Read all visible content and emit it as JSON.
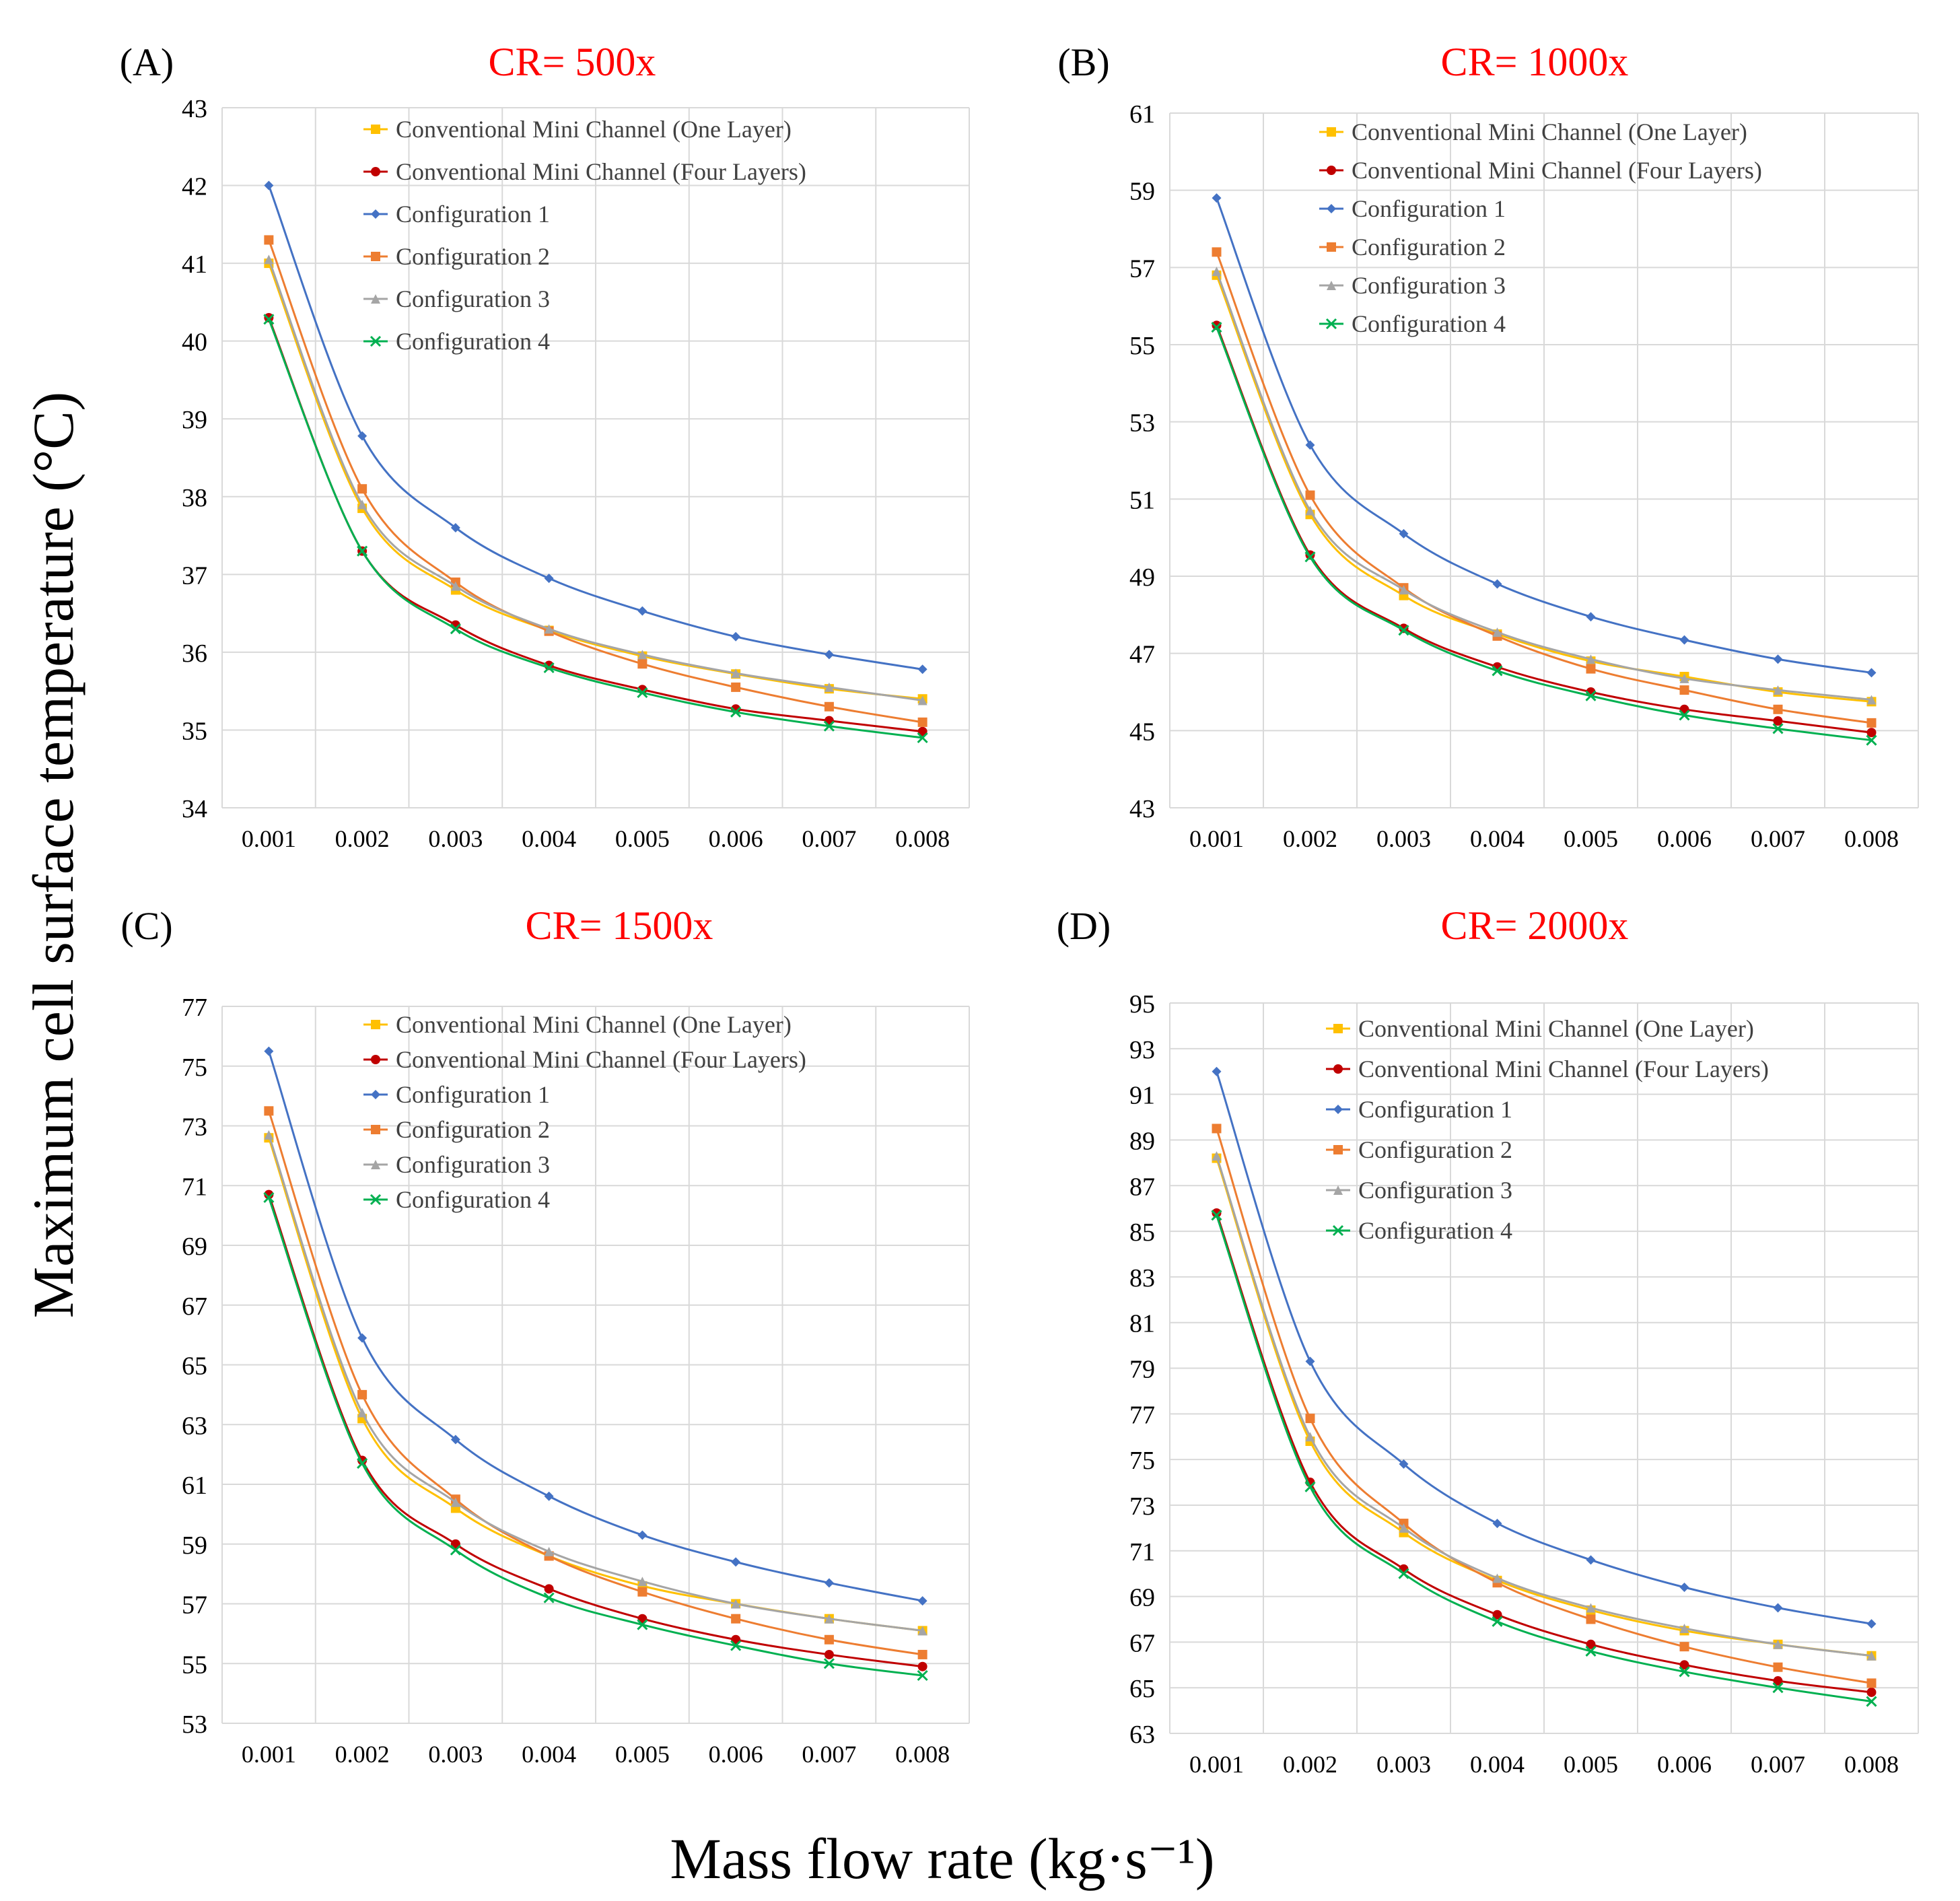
{
  "figure": {
    "ylabel": "Maximum cell surface temperature (°C)",
    "xlabel": "Mass flow rate (kg·s⁻¹)"
  },
  "colors": {
    "panel_title": "#ff0000",
    "grid": "#d9d9d9",
    "series": [
      "#ffc000",
      "#c00000",
      "#4472c4",
      "#ed7d31",
      "#a5a5a5",
      "#00b050"
    ]
  },
  "chart_data": [
    {
      "type": "line",
      "panel_label": "(A)",
      "title": "CR= 500x",
      "categories": [
        "0.001",
        "0.002",
        "0.003",
        "0.004",
        "0.005",
        "0.006",
        "0.007",
        "0.008"
      ],
      "ylim": [
        34,
        43
      ],
      "yticks": [
        34,
        35,
        36,
        37,
        38,
        39,
        40,
        41,
        42,
        43
      ],
      "grid": true,
      "legend": "top-right",
      "series": [
        {
          "name": "Conventional Mini Channel (One Layer)",
          "marker": "square",
          "values": [
            41.0,
            37.85,
            36.8,
            36.28,
            35.95,
            35.72,
            35.53,
            35.4
          ]
        },
        {
          "name": "Conventional Mini Channel (Four Layers)",
          "marker": "circle",
          "values": [
            40.3,
            37.3,
            36.35,
            35.83,
            35.52,
            35.27,
            35.12,
            34.98
          ]
        },
        {
          "name": "Configuration 1",
          "marker": "diamond",
          "values": [
            42.0,
            38.78,
            37.6,
            36.95,
            36.53,
            36.2,
            35.97,
            35.78
          ]
        },
        {
          "name": "Configuration 2",
          "marker": "square",
          "values": [
            41.3,
            38.1,
            36.9,
            36.27,
            35.85,
            35.55,
            35.3,
            35.1
          ]
        },
        {
          "name": "Configuration 3",
          "marker": "triangle",
          "values": [
            41.05,
            37.9,
            36.85,
            36.3,
            35.97,
            35.73,
            35.55,
            35.38
          ]
        },
        {
          "name": "Configuration 4",
          "marker": "x",
          "values": [
            40.28,
            37.3,
            36.3,
            35.8,
            35.48,
            35.23,
            35.05,
            34.9
          ]
        }
      ]
    },
    {
      "type": "line",
      "panel_label": "(B)",
      "title": "CR= 1000x",
      "categories": [
        "0.001",
        "0.002",
        "0.003",
        "0.004",
        "0.005",
        "0.006",
        "0.007",
        "0.008"
      ],
      "ylim": [
        43,
        61
      ],
      "yticks": [
        43,
        45,
        47,
        49,
        51,
        53,
        55,
        57,
        59,
        61
      ],
      "grid": true,
      "legend": "top-right",
      "series": [
        {
          "name": "Conventional Mini Channel (One Layer)",
          "marker": "square",
          "values": [
            56.8,
            50.6,
            48.5,
            47.5,
            46.8,
            46.4,
            46.0,
            45.75
          ]
        },
        {
          "name": "Conventional Mini Channel (Four Layers)",
          "marker": "circle",
          "values": [
            55.5,
            49.55,
            47.65,
            46.65,
            46.0,
            45.55,
            45.25,
            44.95
          ]
        },
        {
          "name": "Configuration 1",
          "marker": "diamond",
          "values": [
            58.8,
            52.4,
            50.1,
            48.8,
            47.95,
            47.35,
            46.85,
            46.5
          ]
        },
        {
          "name": "Configuration 2",
          "marker": "square",
          "values": [
            57.4,
            51.1,
            48.7,
            47.45,
            46.6,
            46.05,
            45.55,
            45.2
          ]
        },
        {
          "name": "Configuration 3",
          "marker": "triangle",
          "values": [
            56.9,
            50.7,
            48.65,
            47.55,
            46.85,
            46.35,
            46.05,
            45.8
          ]
        },
        {
          "name": "Configuration 4",
          "marker": "x",
          "values": [
            55.45,
            49.5,
            47.6,
            46.55,
            45.9,
            45.4,
            45.05,
            44.75
          ]
        }
      ]
    },
    {
      "type": "line",
      "panel_label": "(C)",
      "title": "CR= 1500x",
      "categories": [
        "0.001",
        "0.002",
        "0.003",
        "0.004",
        "0.005",
        "0.006",
        "0.007",
        "0.008"
      ],
      "ylim": [
        53,
        77
      ],
      "yticks": [
        53,
        55,
        57,
        59,
        61,
        63,
        65,
        67,
        69,
        71,
        73,
        75,
        77
      ],
      "grid": true,
      "legend": "top-right",
      "series": [
        {
          "name": "Conventional Mini Channel (One Layer)",
          "marker": "square",
          "values": [
            72.6,
            63.2,
            60.2,
            58.6,
            57.6,
            57.0,
            56.5,
            56.1
          ]
        },
        {
          "name": "Conventional Mini Channel (Four Layers)",
          "marker": "circle",
          "values": [
            70.7,
            61.8,
            59.0,
            57.5,
            56.5,
            55.8,
            55.3,
            54.9
          ]
        },
        {
          "name": "Configuration 1",
          "marker": "diamond",
          "values": [
            75.5,
            65.9,
            62.5,
            60.6,
            59.3,
            58.4,
            57.7,
            57.1
          ]
        },
        {
          "name": "Configuration 2",
          "marker": "square",
          "values": [
            73.5,
            64.0,
            60.5,
            58.6,
            57.4,
            56.5,
            55.8,
            55.3
          ]
        },
        {
          "name": "Configuration 3",
          "marker": "triangle",
          "values": [
            72.7,
            63.4,
            60.4,
            58.75,
            57.75,
            57.0,
            56.5,
            56.1
          ]
        },
        {
          "name": "Configuration 4",
          "marker": "x",
          "values": [
            70.6,
            61.7,
            58.8,
            57.2,
            56.3,
            55.6,
            55.0,
            54.6
          ]
        }
      ]
    },
    {
      "type": "line",
      "panel_label": "(D)",
      "title": "CR= 2000x",
      "categories": [
        "0.001",
        "0.002",
        "0.003",
        "0.004",
        "0.005",
        "0.006",
        "0.007",
        "0.008"
      ],
      "ylim": [
        63,
        95
      ],
      "yticks": [
        63,
        65,
        67,
        69,
        71,
        73,
        75,
        77,
        79,
        81,
        83,
        85,
        87,
        89,
        91,
        93,
        95
      ],
      "grid": true,
      "legend": "top-right",
      "series": [
        {
          "name": "Conventional Mini Channel (One Layer)",
          "marker": "square",
          "values": [
            88.2,
            75.8,
            71.8,
            69.7,
            68.4,
            67.5,
            66.9,
            66.4
          ]
        },
        {
          "name": "Conventional Mini Channel (Four Layers)",
          "marker": "circle",
          "values": [
            85.8,
            74.0,
            70.2,
            68.2,
            66.9,
            66.0,
            65.3,
            64.8
          ]
        },
        {
          "name": "Configuration 1",
          "marker": "diamond",
          "values": [
            92.0,
            79.3,
            74.8,
            72.2,
            70.6,
            69.4,
            68.5,
            67.8
          ]
        },
        {
          "name": "Configuration 2",
          "marker": "square",
          "values": [
            89.5,
            76.8,
            72.2,
            69.6,
            68.0,
            66.8,
            65.9,
            65.2
          ]
        },
        {
          "name": "Configuration 3",
          "marker": "triangle",
          "values": [
            88.3,
            76.0,
            72.0,
            69.8,
            68.5,
            67.6,
            66.9,
            66.4
          ]
        },
        {
          "name": "Configuration 4",
          "marker": "x",
          "values": [
            85.7,
            73.8,
            70.0,
            67.9,
            66.6,
            65.7,
            65.0,
            64.4
          ]
        }
      ]
    }
  ]
}
